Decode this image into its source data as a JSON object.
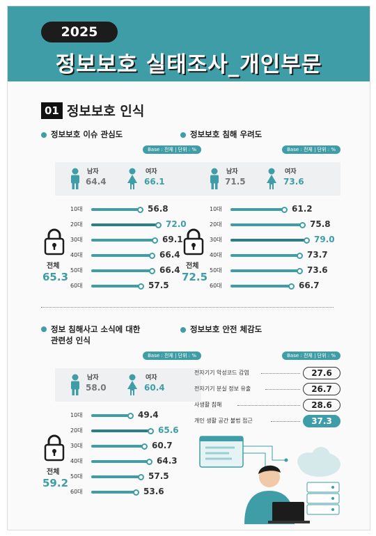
{
  "header": {
    "year": "2025",
    "title": "정보보호 실태조사_개인부문"
  },
  "section": {
    "num": "01",
    "title": "정보보호 인식"
  },
  "base_label": "Base : 전체 | 단위 : %",
  "gender_labels": {
    "male": "남자",
    "female": "여자"
  },
  "total_label": "전체",
  "colors": {
    "accent": "#3e9da6",
    "dark": "#1c1c1c"
  },
  "chart_data": [
    {
      "type": "bar",
      "title": "정보보호 이슈 관심도",
      "gender": {
        "male": "64.4",
        "female": "66.1"
      },
      "categories": [
        "10대",
        "20대",
        "30대",
        "40대",
        "50대",
        "60대"
      ],
      "values": [
        56.8,
        72.0,
        69.1,
        66.4,
        66.4,
        57.5
      ],
      "labels": [
        "56.8",
        "72.0",
        "69.1",
        "66.4",
        "66.4",
        "57.5"
      ],
      "total": "65.3",
      "highlight": 1
    },
    {
      "type": "bar",
      "title": "정보보호 침해 우려도",
      "gender": {
        "male": "71.5",
        "female": "73.6"
      },
      "categories": [
        "10대",
        "20대",
        "30대",
        "40대",
        "50대",
        "60대"
      ],
      "values": [
        61.2,
        75.8,
        79.0,
        73.7,
        73.6,
        66.7
      ],
      "labels": [
        "61.2",
        "75.8",
        "79.0",
        "73.7",
        "73.6",
        "66.7"
      ],
      "total": "72.5",
      "highlight": 2
    },
    {
      "type": "bar",
      "title": "정보 침해사고 소식에 대한 관련성 인식",
      "title_lines": [
        "정보 침해사고 소식에 대한",
        "관련성 인식"
      ],
      "gender": {
        "male": "58.0",
        "female": "60.4"
      },
      "categories": [
        "10대",
        "20대",
        "30대",
        "40대",
        "50대",
        "60대"
      ],
      "values": [
        49.4,
        65.6,
        60.7,
        64.3,
        57.5,
        53.6
      ],
      "labels": [
        "49.4",
        "65.6",
        "60.7",
        "64.3",
        "57.5",
        "53.6"
      ],
      "total": "59.2",
      "highlight": 1
    },
    {
      "type": "table",
      "title": "정보보호 안전 체감도",
      "rows": [
        {
          "label": "전자기기 악성코드 감염",
          "value": "27.6"
        },
        {
          "label": "전자기기 분실 정보 유출",
          "value": "26.7"
        },
        {
          "label": "사생활 침해",
          "value": "28.6"
        },
        {
          "label": "개인 생활 공간 불법 접근",
          "value": "37.3"
        }
      ],
      "highlight": 3
    }
  ]
}
